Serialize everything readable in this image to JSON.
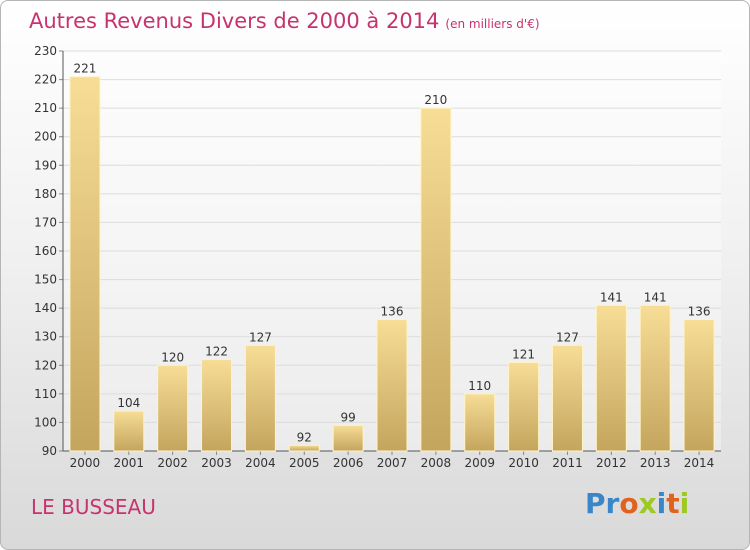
{
  "header": {
    "title": "Autres Revenus Divers de 2000 à 2014",
    "subtitle": "(en milliers d'€)"
  },
  "footer": {
    "place": "LE BUSSEAU",
    "logo_text": "Proxiti"
  },
  "colors": {
    "accent": "#c8326e",
    "bar_light": "#f7dd96",
    "bar_dark": "#c4a55e",
    "logo": [
      "#3a86c8",
      "#3a86c8",
      "#e0621c",
      "#9ec91e",
      "#3a86c8",
      "#e0621c",
      "#9ec91e"
    ]
  },
  "chart_data": {
    "type": "bar",
    "title": "Autres Revenus Divers de 2000 à 2014",
    "categories": [
      "2000",
      "2001",
      "2002",
      "2003",
      "2004",
      "2005",
      "2006",
      "2007",
      "2008",
      "2009",
      "2010",
      "2011",
      "2012",
      "2013",
      "2014"
    ],
    "values": [
      221,
      104,
      120,
      122,
      127,
      92,
      99,
      136,
      210,
      110,
      121,
      127,
      141,
      141,
      136
    ],
    "ylim": [
      90,
      230
    ],
    "yticks": [
      90,
      100,
      110,
      120,
      130,
      140,
      150,
      160,
      170,
      180,
      190,
      200,
      210,
      220,
      230
    ],
    "grid": true,
    "data_labels": true
  }
}
